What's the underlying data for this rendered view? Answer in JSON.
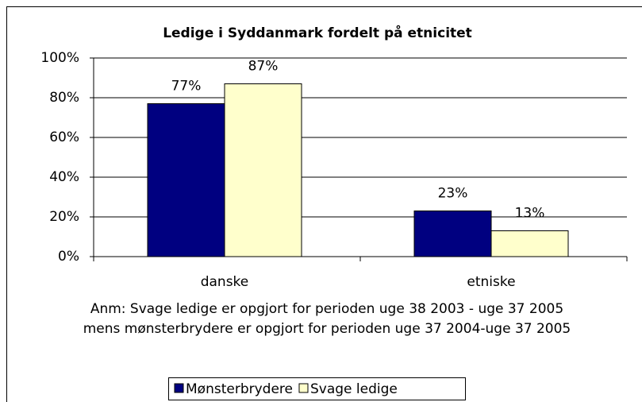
{
  "chart_data": {
    "type": "bar",
    "title": "Ledige i Syddanmark fordelt på etnicitet",
    "categories": [
      "danske",
      "etniske"
    ],
    "series": [
      {
        "name": "Mønsterbrydere",
        "color": "#000080",
        "values": [
          77,
          23
        ],
        "value_labels": [
          "77%",
          "23%"
        ]
      },
      {
        "name": "Svage ledige",
        "color": "#ffffcc",
        "values": [
          87,
          13
        ],
        "value_labels": [
          "87%",
          "13%"
        ]
      }
    ],
    "ylim": [
      0,
      100
    ],
    "yticks": [
      {
        "value": 0,
        "label": "0%"
      },
      {
        "value": 20,
        "label": "20%"
      },
      {
        "value": 40,
        "label": "40%"
      },
      {
        "value": 60,
        "label": "60%"
      },
      {
        "value": 80,
        "label": "80%"
      },
      {
        "value": 100,
        "label": "100%"
      }
    ],
    "grid": true,
    "annotations": [
      "Anm: Svage ledige er opgjort for perioden uge 38 2003 - uge 37 2005",
      "mens mønsterbrydere er opgjort for perioden uge 37 2004-uge 37 2005"
    ],
    "legend": "bottom"
  }
}
